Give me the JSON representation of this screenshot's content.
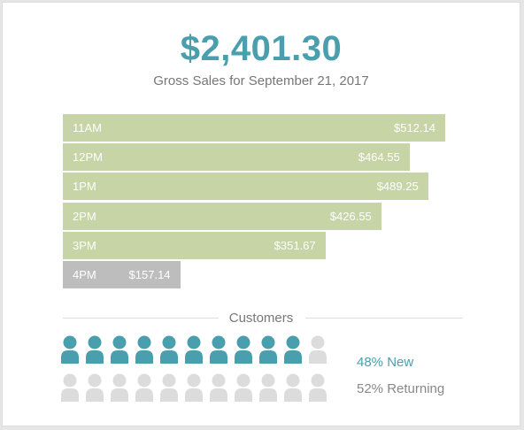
{
  "header": {
    "total": "$2,401.30",
    "subtitle": "Gross Sales for September 21, 2017"
  },
  "colors": {
    "accent": "#4a9fae",
    "bar": "#c6d4a6",
    "bar_muted": "#bdbdbd",
    "person_inactive": "#dcdcdc"
  },
  "chart_data": {
    "type": "bar",
    "orientation": "horizontal",
    "categories": [
      "11AM",
      "12PM",
      "1PM",
      "2PM",
      "3PM",
      "4PM"
    ],
    "values": [
      512.14,
      464.55,
      489.25,
      426.55,
      351.67,
      157.14
    ],
    "value_labels": [
      "$512.14",
      "$464.55",
      "$489.25",
      "$426.55",
      "$351.67",
      "$157.14"
    ],
    "highlight": [
      false,
      false,
      false,
      false,
      false,
      true
    ]
  },
  "customers": {
    "title": "Customers",
    "new_label": "48% New",
    "returning_label": "52% Returning",
    "new_percent": 48,
    "returning_percent": 52,
    "rows": 2,
    "per_row": 11,
    "new_count_row1": 10
  }
}
